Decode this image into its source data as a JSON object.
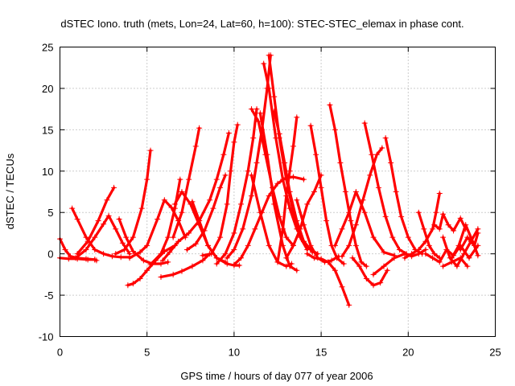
{
  "chart_data": {
    "type": "scatter",
    "title": "dSTEC Iono. truth (mets, Lon=24, Lat=60, h=100): STEC-STEC_elemax in phase cont.",
    "xlabel": "GPS time / hours of day 077 of year 2006",
    "ylabel": "dSTEC  / TECUs",
    "xlim": [
      0,
      25
    ],
    "ylim": [
      -10,
      25
    ],
    "xticks": [
      0,
      5,
      10,
      15,
      20,
      25
    ],
    "yticks": [
      -10,
      -5,
      0,
      5,
      10,
      15,
      20,
      25
    ],
    "grid": true,
    "marker": "+",
    "color": "#ff0000",
    "series": [
      {
        "x": [
          0.0,
          0.3,
          0.6,
          1.0,
          1.5,
          2.0,
          2.1
        ],
        "y": [
          1.8,
          0.5,
          -0.3,
          -0.5,
          -0.6,
          -0.7,
          -0.8
        ]
      },
      {
        "x": [
          0.0,
          0.5,
          1.0,
          1.6,
          2.0
        ],
        "y": [
          -0.5,
          -0.6,
          -0.6,
          -0.7,
          -0.7
        ]
      },
      {
        "x": [
          0.7,
          1.0,
          1.5,
          2.0,
          2.5,
          3.0,
          3.5,
          4.0
        ],
        "y": [
          5.5,
          4.2,
          2.0,
          0.5,
          0.0,
          -0.3,
          -0.4,
          -0.4
        ]
      },
      {
        "x": [
          0.9,
          1.5,
          2.0,
          2.5,
          2.8,
          3.2,
          3.6,
          4.0
        ],
        "y": [
          -0.5,
          0.5,
          2.0,
          3.6,
          4.6,
          3.0,
          1.3,
          0.0
        ]
      },
      {
        "x": [
          1.0,
          1.6,
          2.2,
          2.7,
          3.1
        ],
        "y": [
          0.0,
          1.5,
          4.0,
          6.5,
          8.0
        ]
      },
      {
        "x": [
          3.4,
          3.8,
          4.2,
          4.8,
          5.3,
          5.8,
          6.2
        ],
        "y": [
          4.2,
          2.0,
          0.3,
          -0.8,
          -1.2,
          -1.2,
          -1.0
        ]
      },
      {
        "x": [
          3.2,
          3.7,
          4.2,
          4.7,
          5.0,
          5.2
        ],
        "y": [
          0.0,
          0.5,
          2.0,
          5.5,
          9.0,
          12.5
        ]
      },
      {
        "x": [
          3.9,
          4.2,
          4.6,
          5.0,
          5.5,
          6.0,
          6.6
        ],
        "y": [
          -3.8,
          -3.6,
          -3.0,
          -2.0,
          -0.8,
          0.3,
          1.0
        ]
      },
      {
        "x": [
          4.0,
          4.6,
          5.0,
          5.6,
          6.0,
          6.4,
          6.8,
          7.2
        ],
        "y": [
          -0.5,
          0.2,
          1.0,
          4.2,
          6.5,
          5.6,
          4.0,
          2.0
        ]
      },
      {
        "x": [
          5.2,
          5.8,
          6.2,
          6.6,
          6.9
        ],
        "y": [
          -1.3,
          0.0,
          2.0,
          5.5,
          9.0
        ]
      },
      {
        "x": [
          5.8,
          6.5,
          7.0,
          7.6,
          8.2,
          8.6
        ],
        "y": [
          -2.8,
          -2.5,
          -2.1,
          -1.5,
          -0.8,
          0.0
        ]
      },
      {
        "x": [
          5.9,
          6.3,
          6.8,
          7.4,
          8.0,
          8.6,
          9.0,
          9.4,
          9.7
        ],
        "y": [
          -0.8,
          0.2,
          1.5,
          2.5,
          4.0,
          6.5,
          9.0,
          12.0,
          14.6
        ]
      },
      {
        "x": [
          6.5,
          7.0,
          7.4,
          7.8,
          8.0
        ],
        "y": [
          2.0,
          5.0,
          9.0,
          13.0,
          15.2
        ]
      },
      {
        "x": [
          6.6,
          7.0,
          7.5,
          8.0,
          8.5,
          9.0,
          9.5
        ],
        "y": [
          6.0,
          7.5,
          6.0,
          3.5,
          1.0,
          -0.5,
          -1.0
        ]
      },
      {
        "x": [
          7.6,
          8.0,
          8.5,
          9.0,
          9.6,
          10.0,
          10.3
        ],
        "y": [
          6.3,
          4.0,
          1.0,
          -0.5,
          -1.2,
          -1.4,
          -1.4
        ]
      },
      {
        "x": [
          7.3,
          7.8,
          8.3,
          8.8,
          9.2,
          9.5
        ],
        "y": [
          0.5,
          1.2,
          2.8,
          5.5,
          8.0,
          9.5
        ]
      },
      {
        "x": [
          8.2,
          8.7,
          9.2,
          9.6,
          9.8,
          10.0,
          10.2
        ],
        "y": [
          -0.2,
          0.0,
          2.0,
          6.0,
          10.0,
          13.5,
          15.6
        ]
      },
      {
        "x": [
          9.0,
          9.5,
          10.0,
          10.4,
          10.8,
          11.1,
          11.3
        ],
        "y": [
          -1.2,
          0.0,
          2.5,
          6.0,
          10.0,
          14.0,
          17.5
        ]
      },
      {
        "x": [
          9.6,
          10.0,
          10.5,
          11.0,
          11.3,
          11.6,
          11.9,
          12.1
        ],
        "y": [
          -0.5,
          0.5,
          3.0,
          7.0,
          11.0,
          15.0,
          20.0,
          24.0
        ]
      },
      {
        "x": [
          10.0,
          10.4,
          10.8,
          11.2,
          11.6,
          12.0,
          12.5,
          13.0,
          13.4,
          14.0
        ],
        "y": [
          -1.3,
          -0.5,
          1.0,
          3.0,
          5.0,
          7.0,
          8.5,
          9.2,
          9.3,
          9.0
        ]
      },
      {
        "x": [
          11.0,
          11.4,
          11.8,
          12.2,
          12.6,
          13.0,
          13.4
        ],
        "y": [
          17.5,
          16.0,
          12.0,
          8.0,
          4.5,
          2.0,
          1.0
        ]
      },
      {
        "x": [
          11.7,
          12.0,
          12.4,
          12.8,
          13.2,
          13.6,
          14.0,
          14.4,
          14.8
        ],
        "y": [
          23.0,
          20.0,
          14.0,
          9.0,
          5.5,
          3.0,
          1.5,
          0.5,
          0.0
        ]
      },
      {
        "x": [
          12.0,
          12.3,
          12.6,
          13.0,
          13.4,
          13.8,
          14.2
        ],
        "y": [
          24.0,
          19.0,
          14.0,
          9.0,
          5.0,
          2.0,
          0.5
        ]
      },
      {
        "x": [
          12.3,
          12.6,
          12.9,
          13.2,
          13.6,
          14.0,
          14.5
        ],
        "y": [
          17.2,
          14.5,
          11.0,
          7.5,
          4.0,
          1.5,
          0.2
        ]
      },
      {
        "x": [
          11.5,
          11.9,
          12.3,
          12.8,
          13.2,
          13.6
        ],
        "y": [
          17.0,
          12.0,
          6.0,
          1.0,
          -1.5,
          -2.0
        ]
      },
      {
        "x": [
          11.0,
          11.5,
          12.0,
          12.5,
          13.0,
          13.3
        ],
        "y": [
          9.5,
          5.0,
          1.0,
          -1.0,
          -1.5,
          -1.2
        ]
      },
      {
        "x": [
          12.5,
          12.8,
          13.0,
          13.2,
          13.4,
          13.6
        ],
        "y": [
          -1.0,
          3.0,
          7.0,
          10.0,
          13.0,
          16.5
        ]
      },
      {
        "x": [
          13.0,
          13.4,
          13.8,
          14.2,
          14.6,
          15.0
        ],
        "y": [
          -0.5,
          1.0,
          3.0,
          6.0,
          7.5,
          9.5
        ]
      },
      {
        "x": [
          13.6,
          14.0,
          14.4,
          14.8,
          15.2,
          15.6,
          16.0
        ],
        "y": [
          6.5,
          3.5,
          1.0,
          -0.5,
          -1.0,
          -0.8,
          -0.3
        ]
      },
      {
        "x": [
          14.4,
          14.7,
          15.0,
          15.3,
          15.6,
          15.9,
          16.3
        ],
        "y": [
          15.5,
          12.0,
          8.0,
          4.0,
          1.0,
          -0.5,
          -1.2
        ]
      },
      {
        "x": [
          14.2,
          14.6,
          15.0,
          15.4,
          15.8,
          16.2,
          16.6
        ],
        "y": [
          0.0,
          -0.5,
          -0.6,
          -1.0,
          -2.0,
          -4.0,
          -6.2
        ]
      },
      {
        "x": [
          15.5,
          15.8,
          16.1,
          16.4,
          16.7,
          17.0,
          17.3,
          17.6
        ],
        "y": [
          18.0,
          15.0,
          11.0,
          7.5,
          4.0,
          1.0,
          -1.0,
          -1.5
        ]
      },
      {
        "x": [
          15.8,
          16.2,
          16.6,
          17.0,
          17.5,
          18.0,
          18.6,
          19.2
        ],
        "y": [
          1.0,
          3.0,
          5.0,
          7.5,
          5.0,
          2.0,
          0.2,
          -0.2
        ]
      },
      {
        "x": [
          16.2,
          16.6,
          17.0,
          17.4,
          17.8,
          18.2,
          18.5
        ],
        "y": [
          -0.3,
          1.0,
          3.5,
          6.5,
          9.5,
          12.0,
          12.8
        ]
      },
      {
        "x": [
          17.5,
          17.9,
          18.3,
          18.7,
          19.1,
          19.5,
          19.9
        ],
        "y": [
          15.8,
          12.0,
          8.0,
          4.5,
          2.0,
          0.5,
          0.0
        ]
      },
      {
        "x": [
          16.8,
          17.2,
          17.6,
          18.0,
          18.4,
          18.8
        ],
        "y": [
          -0.5,
          -1.5,
          -3.0,
          -3.8,
          -3.5,
          -2.0
        ]
      },
      {
        "x": [
          18.7,
          19.0,
          19.3,
          19.6,
          20.0,
          20.4,
          20.8
        ],
        "y": [
          14.0,
          11.0,
          7.5,
          4.5,
          2.0,
          0.5,
          0.0
        ]
      },
      {
        "x": [
          18.0,
          18.6,
          19.2,
          19.8,
          20.2,
          20.6,
          21.0
        ],
        "y": [
          -2.5,
          -1.5,
          -0.5,
          0.0,
          -0.3,
          0.0,
          0.5
        ]
      },
      {
        "x": [
          19.8,
          20.2,
          20.6,
          21.0,
          21.4,
          21.6,
          21.8
        ],
        "y": [
          -0.5,
          0.0,
          0.5,
          1.5,
          3.0,
          5.0,
          7.3
        ]
      },
      {
        "x": [
          20.6,
          20.9,
          21.2,
          21.5,
          21.8
        ],
        "y": [
          5.0,
          3.0,
          1.0,
          0.0,
          -0.5
        ]
      },
      {
        "x": [
          21.5,
          21.8,
          22.0,
          22.3,
          22.6,
          23.0,
          23.3
        ],
        "y": [
          3.5,
          3.0,
          4.8,
          3.5,
          2.8,
          4.3,
          3.0
        ]
      },
      {
        "x": [
          21.0,
          21.4,
          21.8,
          22.2,
          22.6,
          23.0,
          23.5,
          24.0
        ],
        "y": [
          0.0,
          -0.5,
          -1.0,
          0.5,
          -0.2,
          1.0,
          -0.5,
          1.0
        ]
      },
      {
        "x": [
          22.0,
          22.4,
          22.8,
          23.2,
          23.6,
          24.0
        ],
        "y": [
          2.0,
          -0.5,
          -1.5,
          0.0,
          1.5,
          3.0
        ]
      },
      {
        "x": [
          22.5,
          22.9,
          23.3,
          23.7,
          24.0
        ],
        "y": [
          -0.5,
          1.0,
          3.5,
          1.5,
          -0.2
        ]
      },
      {
        "x": [
          23.0,
          23.4,
          23.8,
          24.0
        ],
        "y": [
          0.5,
          2.0,
          1.0,
          2.5
        ]
      },
      {
        "x": [
          22.0,
          22.5,
          23.0,
          23.4
        ],
        "y": [
          -1.5,
          -1.0,
          -0.5,
          -1.5
        ]
      }
    ]
  }
}
